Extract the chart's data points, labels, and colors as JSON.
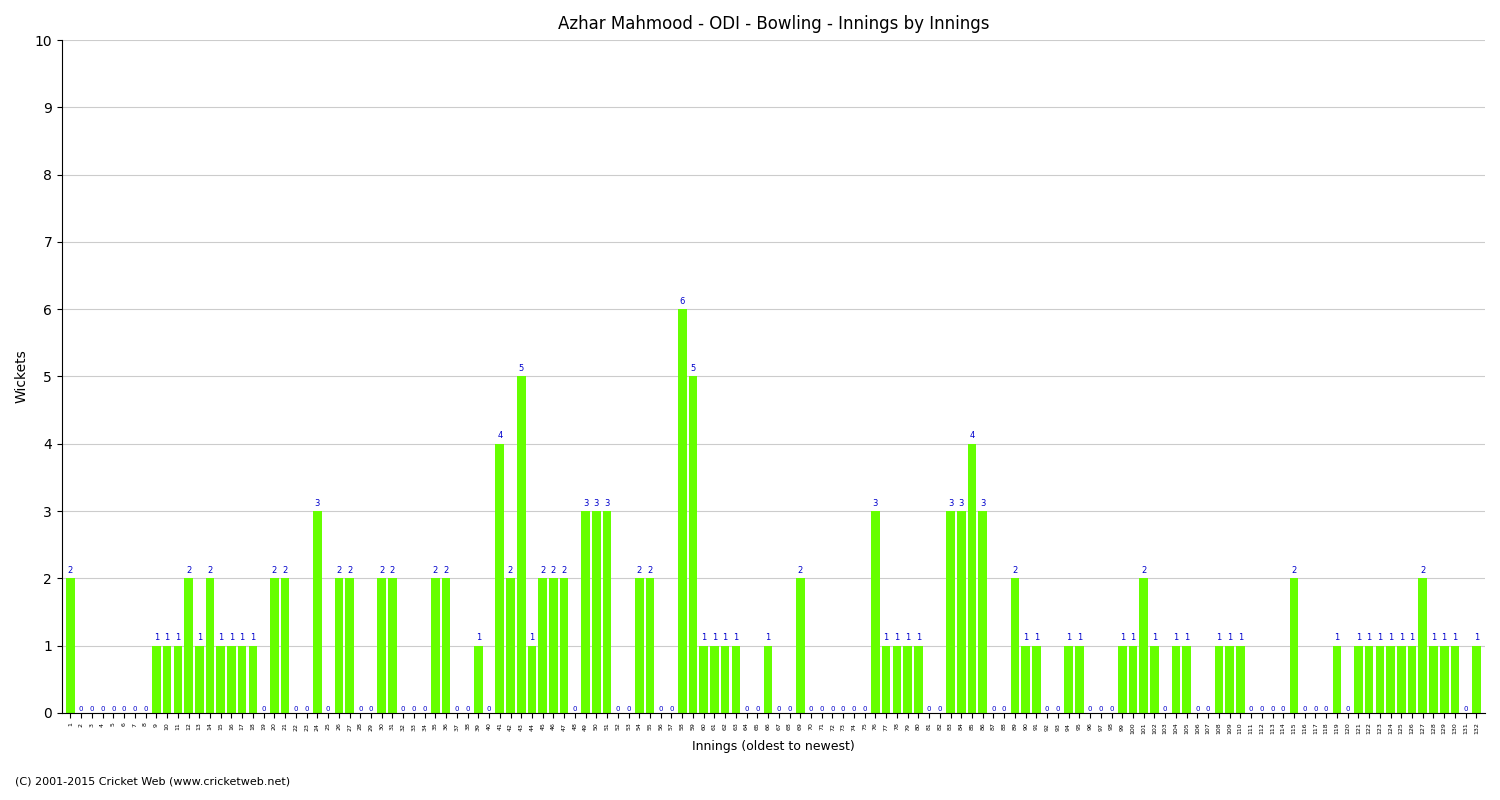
{
  "title": "Azhar Mahmood - ODI - Bowling - Innings by Innings",
  "xlabel": "Innings (oldest to newest)",
  "ylabel": "Wickets",
  "background_color": "#ffffff",
  "bar_color": "#66ff00",
  "text_color": "#0000cc",
  "ylim": [
    0,
    10
  ],
  "yticks": [
    0,
    1,
    2,
    3,
    4,
    5,
    6,
    7,
    8,
    9,
    10
  ],
  "footer": "(C) 2001-2015 Cricket Web (www.cricketweb.net)",
  "wickets": [
    2,
    0,
    0,
    0,
    0,
    0,
    0,
    0,
    1,
    1,
    1,
    2,
    1,
    2,
    1,
    1,
    1,
    1,
    0,
    2,
    2,
    0,
    0,
    3,
    0,
    2,
    2,
    0,
    0,
    2,
    2,
    0,
    0,
    0,
    2,
    2,
    0,
    0,
    1,
    0,
    4,
    2,
    5,
    1,
    2,
    2,
    2,
    0,
    3,
    3,
    3,
    0,
    0,
    2,
    2,
    0,
    0,
    6,
    5,
    1,
    1,
    1,
    1,
    0,
    0,
    1,
    0,
    0,
    2,
    0,
    0,
    0,
    0,
    0,
    0,
    3,
    1,
    1,
    1,
    1,
    0,
    0,
    3,
    3,
    4,
    3,
    0,
    0,
    2,
    1,
    1,
    0,
    0,
    1,
    1,
    0,
    0,
    0,
    1,
    1,
    2,
    1,
    0,
    1,
    1,
    0,
    0,
    1,
    1,
    1,
    0,
    0,
    0,
    0,
    2,
    0,
    0,
    0,
    1,
    0,
    1,
    1,
    1,
    1,
    1,
    1,
    2,
    1,
    1,
    1,
    0,
    1
  ]
}
